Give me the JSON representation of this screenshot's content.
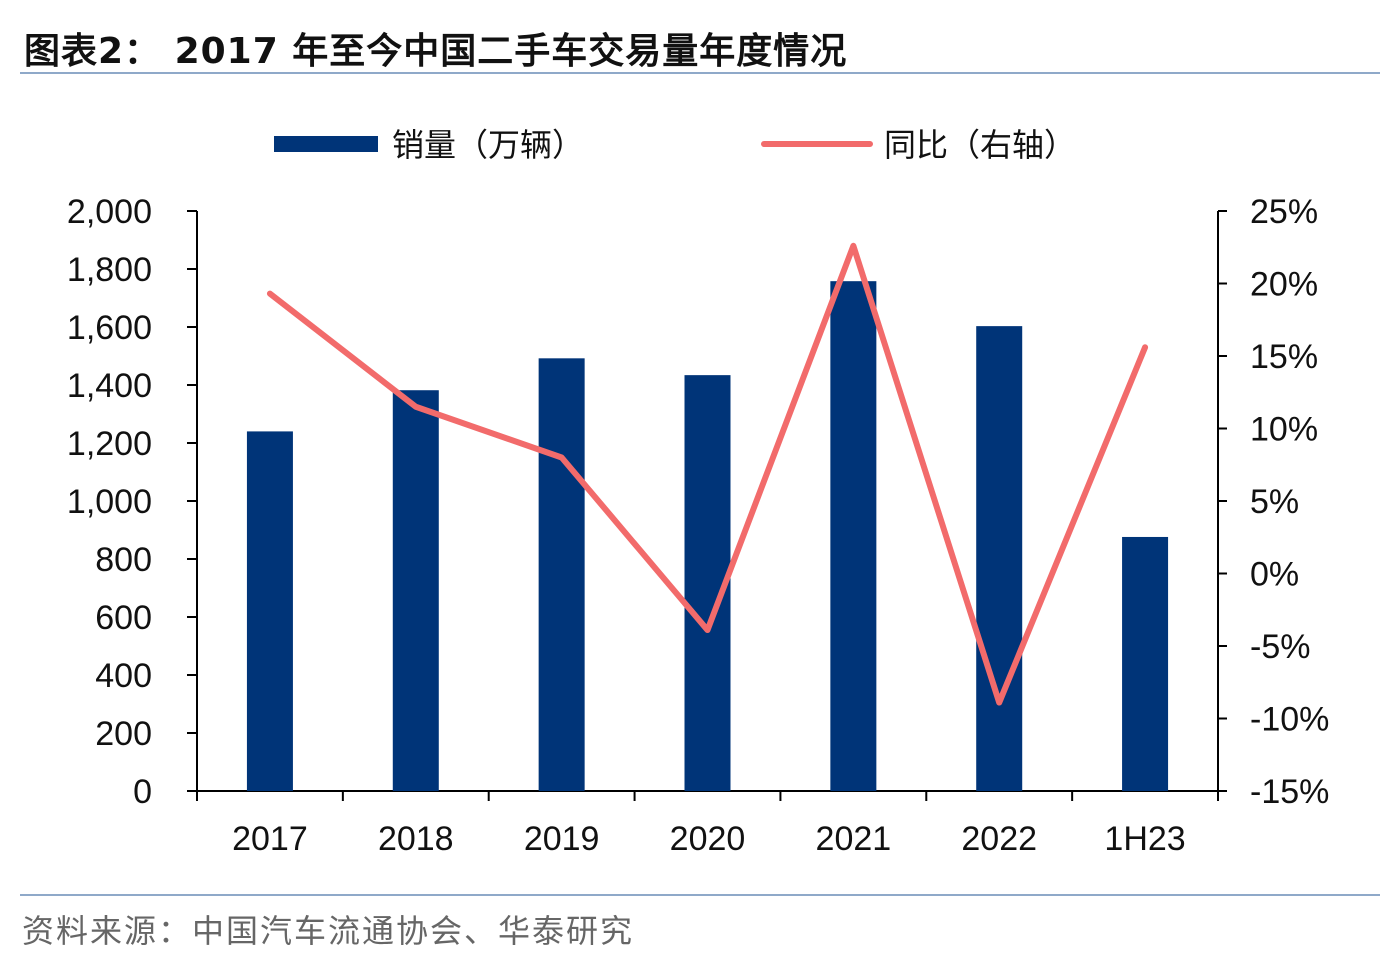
{
  "header": {
    "title": "图表2： 2017 年至今中国二手车交易量年度情况"
  },
  "footer": {
    "source": "资料来源：中国汽车流通协会、华泰研究"
  },
  "colors": {
    "bar": "#003478",
    "line": "#F26B6B",
    "rule": "#8FA9C9"
  },
  "chart_data": {
    "type": "bar+line",
    "title": "",
    "categories": [
      "2017",
      "2018",
      "2019",
      "2020",
      "2021",
      "2022",
      "1H23"
    ],
    "series": [
      {
        "name": "销量（万辆）",
        "type": "bar",
        "axis": "left",
        "values": [
          1240,
          1382,
          1492,
          1434,
          1758,
          1603,
          876
        ]
      },
      {
        "name": "同比（右轴）",
        "type": "line",
        "axis": "right",
        "values": [
          19.3,
          11.5,
          8.0,
          -3.9,
          22.6,
          -8.9,
          15.6
        ]
      }
    ],
    "left_axis": {
      "ylim": [
        0,
        2000
      ],
      "ticks": [
        "0",
        "200",
        "400",
        "600",
        "800",
        "1,000",
        "1,200",
        "1,400",
        "1,600",
        "1,800",
        "2,000"
      ]
    },
    "right_axis": {
      "ylim": [
        -15,
        25
      ],
      "ticks": [
        "-15%",
        "-10%",
        "-5%",
        "0%",
        "5%",
        "10%",
        "15%",
        "20%",
        "25%"
      ]
    },
    "grid": false,
    "legend": "top"
  }
}
